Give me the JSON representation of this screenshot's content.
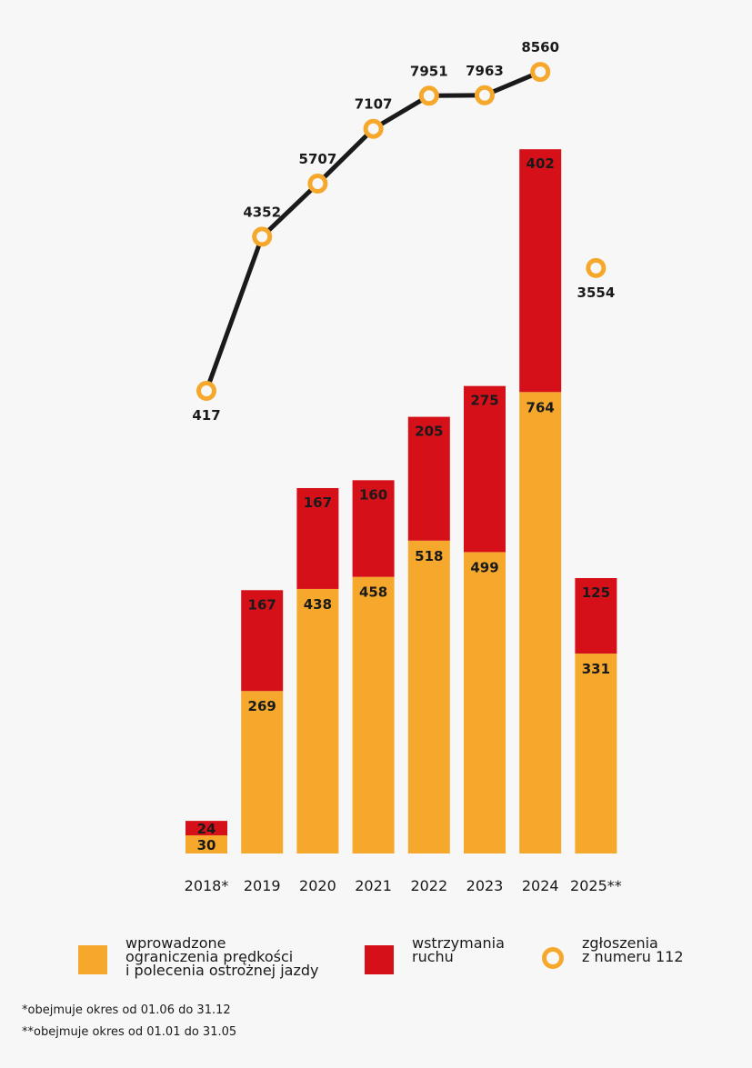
{
  "colors": {
    "orange": "#f5a82b",
    "red": "#d61019",
    "line": "#1a1a1a",
    "background": "#f7f7f7"
  },
  "chart_data": {
    "type": "bar",
    "stacked": true,
    "categories": [
      "2018*",
      "2019",
      "2020",
      "2021",
      "2022",
      "2023",
      "2024",
      "2025**"
    ],
    "series": [
      {
        "name": "wprowadzone ograniczenia prędkości i polecenia ostrożnej jazdy",
        "kind": "bar",
        "color": "#f5a82b",
        "values": [
          30,
          269,
          438,
          458,
          518,
          499,
          764,
          331
        ]
      },
      {
        "name": "wstrzymania ruchu",
        "kind": "bar",
        "color": "#d61019",
        "values": [
          24,
          167,
          167,
          160,
          205,
          275,
          402,
          125
        ]
      },
      {
        "name": "zgłoszenia z numeru 112",
        "kind": "line-points",
        "color": "#f5a82b",
        "values": [
          417,
          4352,
          5707,
          7107,
          7951,
          7963,
          8560,
          3554
        ],
        "connected_until_index": 6
      }
    ],
    "legend_position": "bottom",
    "grid": false
  },
  "legend": {
    "items": [
      {
        "label": "wprowadzone\nograniczenia prędkości\ni polecenia ostrożnej jazdy",
        "color": "#f5a82b",
        "shape": "square"
      },
      {
        "label": "wstrzymania\nruchu",
        "color": "#d61019",
        "shape": "square"
      },
      {
        "label": "zgłoszenia\nz numeru 112",
        "color": "#f5a82b",
        "shape": "ring"
      }
    ]
  },
  "footnotes": [
    "*obejmuje okres od 01.06 do 31.12",
    "**obejmuje okres od 01.01 do 31.05"
  ]
}
